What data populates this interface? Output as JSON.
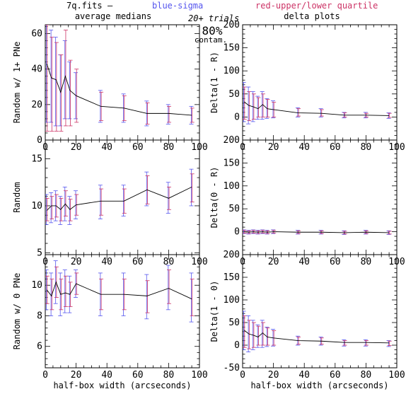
{
  "header": {
    "filename": "7q.fits",
    "dash": "—",
    "blue_label": "blue-sigma",
    "red_label": "red-upper/lower quartile",
    "col_left_title": "average medians",
    "col_right_title": "delta plots",
    "annotation_trials": "20+ trials",
    "annotation_percent": "80%",
    "annotation_contam": "contam."
  },
  "colors": {
    "blue": "#5555ee",
    "red": "#cc3366",
    "line": "#000000"
  },
  "chart_data": [
    {
      "id": "top-left",
      "type": "line",
      "title": "",
      "ylabel": "Random w/ 1+ PNe",
      "xlabel": "",
      "xlim": [
        0,
        100
      ],
      "ylim": [
        0,
        65
      ],
      "xticks": [
        0,
        20,
        40,
        60,
        80,
        100
      ],
      "yticks": [
        0,
        20,
        40,
        60
      ],
      "x": [
        1,
        4,
        7,
        10,
        13,
        16,
        20,
        36,
        51,
        66,
        80,
        95
      ],
      "values": [
        43,
        35,
        34,
        27,
        36,
        28,
        25,
        19,
        18,
        15,
        15,
        14
      ],
      "blue_err": [
        [
          10,
          75
        ],
        [
          10,
          62
        ],
        [
          8,
          58
        ],
        [
          8,
          48
        ],
        [
          12,
          56
        ],
        [
          12,
          44
        ],
        [
          12,
          38
        ],
        [
          10,
          28
        ],
        [
          10,
          26
        ],
        [
          8,
          22
        ],
        [
          9,
          20
        ],
        [
          9,
          19
        ]
      ],
      "red_err": [
        [
          5,
          65
        ],
        [
          5,
          58
        ],
        [
          5,
          55
        ],
        [
          5,
          48
        ],
        [
          8,
          62
        ],
        [
          8,
          45
        ],
        [
          10,
          40
        ],
        [
          11,
          27
        ],
        [
          11,
          25
        ],
        [
          9,
          21
        ],
        [
          10,
          19
        ],
        [
          10,
          18
        ]
      ]
    },
    {
      "id": "mid-left",
      "type": "line",
      "title": "",
      "ylabel": "Random",
      "xlabel": "",
      "xlim": [
        0,
        100
      ],
      "ylim": [
        4.8,
        17
      ],
      "xticks": [
        0,
        20,
        40,
        60,
        80,
        100
      ],
      "yticks": [
        5,
        10,
        15
      ],
      "x": [
        1,
        4,
        7,
        10,
        13,
        16,
        20,
        36,
        51,
        66,
        80,
        95
      ],
      "values": [
        9.5,
        10.0,
        10.0,
        9.6,
        10.2,
        9.6,
        10.1,
        10.5,
        10.5,
        11.7,
        10.8,
        12.0
      ],
      "blue_err": [
        [
          8.0,
          11.2
        ],
        [
          8.2,
          11.4
        ],
        [
          8.4,
          11.6
        ],
        [
          8.0,
          11.0
        ],
        [
          8.4,
          12.0
        ],
        [
          8.0,
          11.0
        ],
        [
          8.6,
          11.6
        ],
        [
          8.6,
          12.2
        ],
        [
          8.9,
          12.2
        ],
        [
          10.0,
          13.6
        ],
        [
          9.2,
          12.5
        ],
        [
          10.0,
          13.9
        ]
      ],
      "red_err": [
        [
          8.4,
          10.8
        ],
        [
          8.6,
          11.0
        ],
        [
          8.8,
          11.2
        ],
        [
          8.4,
          10.8
        ],
        [
          8.9,
          11.6
        ],
        [
          8.4,
          10.7
        ],
        [
          9.0,
          11.2
        ],
        [
          9.0,
          11.8
        ],
        [
          9.2,
          11.8
        ],
        [
          10.2,
          13.2
        ],
        [
          9.6,
          12.0
        ],
        [
          10.4,
          13.4
        ]
      ]
    },
    {
      "id": "bottom-left",
      "type": "line",
      "title": "",
      "ylabel": "Random w/ 0 PNe",
      "xlabel": "half-box width (arcseconds)",
      "xlim": [
        0,
        100
      ],
      "ylim": [
        4.6,
        12
      ],
      "xticks": [
        0,
        20,
        40,
        60,
        80,
        100
      ],
      "yticks": [
        6,
        8,
        10
      ],
      "x": [
        1,
        4,
        7,
        10,
        13,
        16,
        20,
        36,
        51,
        66,
        80,
        95
      ],
      "values": [
        9.7,
        9.3,
        10.2,
        9.4,
        9.5,
        9.4,
        10.1,
        9.4,
        9.4,
        9.3,
        9.8,
        9.1
      ],
      "blue_err": [
        [
          8.4,
          11.0
        ],
        [
          8.0,
          10.8
        ],
        [
          8.8,
          11.6
        ],
        [
          8.0,
          10.8
        ],
        [
          8.2,
          11.0
        ],
        [
          8.2,
          10.6
        ],
        [
          9.2,
          11.0
        ],
        [
          8.0,
          10.8
        ],
        [
          8.0,
          10.8
        ],
        [
          7.8,
          10.7
        ],
        [
          8.4,
          11.3
        ],
        [
          7.6,
          10.8
        ]
      ],
      "red_err": [
        [
          8.8,
          10.6
        ],
        [
          8.4,
          10.4
        ],
        [
          9.2,
          11.2
        ],
        [
          8.4,
          10.4
        ],
        [
          8.6,
          10.6
        ],
        [
          8.6,
          10.2
        ],
        [
          9.4,
          10.8
        ],
        [
          8.4,
          10.4
        ],
        [
          8.4,
          10.4
        ],
        [
          8.2,
          10.3
        ],
        [
          8.8,
          11.0
        ],
        [
          8.0,
          10.4
        ]
      ]
    },
    {
      "id": "top-right",
      "type": "line",
      "title": "",
      "ylabel": "Delta(1 - R)",
      "xlabel": "",
      "xlim": [
        0,
        100
      ],
      "ylim": [
        -50,
        200
      ],
      "xticks": [
        0,
        20,
        40,
        60,
        80,
        100
      ],
      "yticks": [
        0,
        50,
        100,
        150,
        200
      ],
      "x": [
        1,
        4,
        7,
        10,
        13,
        16,
        20,
        36,
        51,
        66,
        80,
        95
      ],
      "values": [
        33,
        25,
        22,
        18,
        27,
        18,
        16,
        9,
        8,
        4,
        4,
        3
      ],
      "blue_err": [
        [
          -10,
          75
        ],
        [
          -15,
          65
        ],
        [
          -10,
          55
        ],
        [
          -5,
          45
        ],
        [
          -5,
          55
        ],
        [
          -3,
          40
        ],
        [
          -2,
          35
        ],
        [
          0,
          20
        ],
        [
          0,
          18
        ],
        [
          -2,
          10
        ],
        [
          -2,
          10
        ],
        [
          -3,
          9
        ]
      ],
      "red_err": [
        [
          -5,
          65
        ],
        [
          -8,
          55
        ],
        [
          -5,
          50
        ],
        [
          0,
          42
        ],
        [
          0,
          50
        ],
        [
          0,
          38
        ],
        [
          0,
          32
        ],
        [
          2,
          18
        ],
        [
          2,
          16
        ],
        [
          0,
          9
        ],
        [
          0,
          8
        ],
        [
          -1,
          8
        ]
      ]
    },
    {
      "id": "mid-right",
      "type": "line",
      "title": "",
      "ylabel": "Delta(0 - R)",
      "xlabel": "",
      "xlim": [
        0,
        100
      ],
      "ylim": [
        -50,
        200
      ],
      "xticks": [
        0,
        20,
        40,
        60,
        80,
        100
      ],
      "yticks": [
        0,
        50,
        100,
        150,
        200
      ],
      "x": [
        1,
        4,
        7,
        10,
        13,
        16,
        20,
        36,
        51,
        66,
        80,
        95
      ],
      "values": [
        0,
        -1,
        0,
        -1,
        0,
        -1,
        0,
        -1,
        -1,
        -2,
        -1,
        -2
      ],
      "blue_err": [
        [
          -4,
          4
        ],
        [
          -5,
          3
        ],
        [
          -4,
          4
        ],
        [
          -5,
          3
        ],
        [
          -4,
          4
        ],
        [
          -5,
          3
        ],
        [
          -4,
          4
        ],
        [
          -5,
          3
        ],
        [
          -5,
          3
        ],
        [
          -6,
          2
        ],
        [
          -5,
          3
        ],
        [
          -6,
          2
        ]
      ],
      "red_err": [
        [
          -3,
          3
        ],
        [
          -4,
          2
        ],
        [
          -3,
          3
        ],
        [
          -4,
          2
        ],
        [
          -3,
          3
        ],
        [
          -4,
          2
        ],
        [
          -3,
          3
        ],
        [
          -4,
          2
        ],
        [
          -4,
          2
        ],
        [
          -5,
          1
        ],
        [
          -4,
          2
        ],
        [
          -5,
          1
        ]
      ]
    },
    {
      "id": "bottom-right",
      "type": "line",
      "title": "",
      "ylabel": "Delta(1 - 0)",
      "xlabel": "half-box width (arcseconds)",
      "xlim": [
        0,
        100
      ],
      "ylim": [
        -50,
        200
      ],
      "xticks": [
        0,
        20,
        40,
        60,
        80,
        100
      ],
      "yticks": [
        -50,
        0,
        50,
        100,
        150,
        200
      ],
      "x": [
        1,
        4,
        7,
        10,
        13,
        16,
        20,
        36,
        51,
        66,
        80,
        95
      ],
      "values": [
        33,
        25,
        22,
        18,
        27,
        18,
        16,
        10,
        9,
        6,
        6,
        5
      ],
      "blue_err": [
        [
          -10,
          75
        ],
        [
          -15,
          65
        ],
        [
          -10,
          55
        ],
        [
          -5,
          45
        ],
        [
          -5,
          55
        ],
        [
          -3,
          40
        ],
        [
          -2,
          35
        ],
        [
          0,
          20
        ],
        [
          0,
          18
        ],
        [
          -2,
          12
        ],
        [
          -2,
          12
        ],
        [
          -3,
          10
        ]
      ],
      "red_err": [
        [
          -5,
          65
        ],
        [
          -8,
          55
        ],
        [
          -5,
          50
        ],
        [
          0,
          42
        ],
        [
          0,
          50
        ],
        [
          0,
          38
        ],
        [
          0,
          32
        ],
        [
          2,
          18
        ],
        [
          2,
          16
        ],
        [
          0,
          10
        ],
        [
          0,
          10
        ],
        [
          -1,
          9
        ]
      ]
    }
  ]
}
